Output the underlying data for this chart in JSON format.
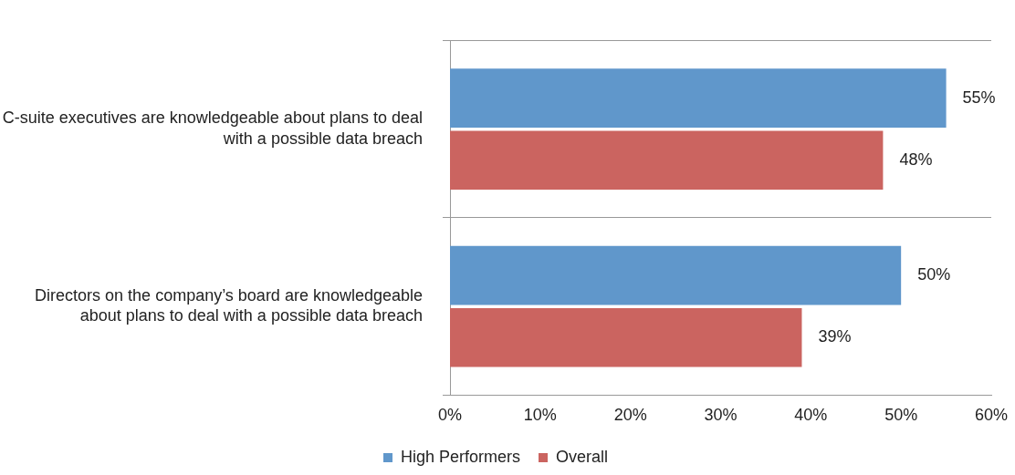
{
  "chart_data": {
    "type": "bar",
    "orientation": "horizontal",
    "categories": [
      "C-suite executives are knowledgeable about plans to deal with a possible data breach",
      "Directors on the company’s board are knowledgeable about plans to deal with a possible data breach"
    ],
    "series": [
      {
        "name": "High Performers",
        "color": "#6097cb",
        "values": [
          55,
          50
        ],
        "value_labels": [
          "55%",
          "50%"
        ]
      },
      {
        "name": "Overall",
        "color": "#cb6460",
        "values": [
          48,
          39
        ],
        "value_labels": [
          "48%",
          "39%"
        ]
      }
    ],
    "xlim": [
      0,
      60
    ],
    "xticks": [
      {
        "value": 0,
        "label": "0%"
      },
      {
        "value": 10,
        "label": "10%"
      },
      {
        "value": 20,
        "label": "20%"
      },
      {
        "value": 30,
        "label": "30%"
      },
      {
        "value": 40,
        "label": "40%"
      },
      {
        "value": 50,
        "label": "50%"
      },
      {
        "value": 60,
        "label": "60%"
      }
    ],
    "grid": "y",
    "legend": "bottom"
  }
}
